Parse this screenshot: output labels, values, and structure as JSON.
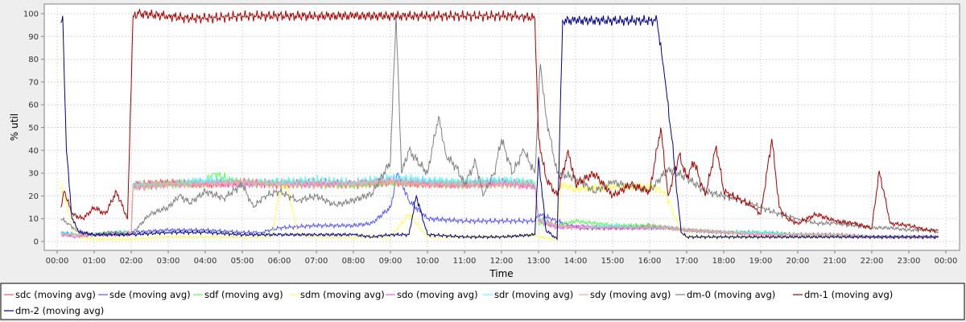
{
  "chart_data": {
    "type": "line",
    "title": "",
    "xlabel": "Time",
    "ylabel": "% util",
    "ylim": [
      0,
      100
    ],
    "yticks": [
      0,
      10,
      20,
      30,
      40,
      50,
      60,
      70,
      80,
      90,
      100
    ],
    "xlim": [
      "00:00",
      "24:00"
    ],
    "xtick_labels": [
      "00:00",
      "01:00",
      "02:00",
      "03:00",
      "04:00",
      "05:00",
      "06:00",
      "07:00",
      "08:00",
      "09:00",
      "10:00",
      "11:00",
      "12:00",
      "13:00",
      "14:00",
      "15:00",
      "16:00",
      "17:00",
      "18:00",
      "19:00",
      "20:00",
      "21:00",
      "22:00",
      "23:00",
      "00:00"
    ],
    "grid": true,
    "legend_position": "bottom",
    "series": [
      {
        "name": "sdc (moving avg)",
        "color": "#ff5555",
        "x": [
          0.1,
          0.5,
          1,
          1.5,
          2,
          2.05,
          3,
          4,
          5,
          6,
          7,
          8,
          9,
          10,
          11,
          12,
          12.9,
          13.0,
          13.5,
          14,
          15,
          16,
          16.5,
          17,
          18,
          19,
          20,
          21,
          22,
          23,
          23.8
        ],
        "y": [
          3,
          3,
          3,
          4,
          4,
          25,
          26,
          25,
          26,
          25,
          26,
          25,
          26,
          25,
          25,
          26,
          25,
          10,
          7,
          6,
          6,
          7,
          6,
          5,
          4,
          4,
          3,
          3,
          2,
          2,
          2
        ]
      },
      {
        "name": "sde (moving avg)",
        "color": "#5555ff",
        "x": [
          0.1,
          0.5,
          1,
          1.5,
          2,
          3,
          4,
          5,
          5.5,
          6,
          7,
          8,
          8.5,
          9,
          9.2,
          9.5,
          10,
          11,
          12,
          12.9,
          13.0,
          13.5,
          14,
          15,
          16,
          16.5,
          17,
          18,
          19,
          20,
          21,
          22,
          23,
          23.8
        ],
        "y": [
          4,
          3,
          3,
          4,
          4,
          5,
          5,
          4,
          4,
          6,
          7,
          7,
          8,
          15,
          30,
          18,
          10,
          9,
          9,
          9,
          12,
          9,
          6,
          6,
          6,
          6,
          5,
          4,
          4,
          3,
          3,
          2,
          2,
          2
        ]
      },
      {
        "name": "sdf (moving avg)",
        "color": "#55ff55",
        "x": [
          0.1,
          0.5,
          1,
          1.5,
          2,
          2.05,
          3,
          4,
          4.2,
          5,
          6,
          7,
          8,
          9,
          10,
          11,
          12,
          12.9,
          13.0,
          13.5,
          14,
          15,
          16,
          16.5,
          17,
          18,
          19,
          20,
          21,
          22,
          23,
          23.8
        ],
        "y": [
          3,
          3,
          3,
          4,
          4,
          24,
          25,
          26,
          30,
          25,
          26,
          25,
          25,
          26,
          26,
          25,
          26,
          25,
          8,
          7,
          9,
          7,
          7,
          6,
          5,
          4,
          4,
          3,
          3,
          2,
          2,
          2
        ]
      },
      {
        "name": "sdm (moving avg)",
        "color": "#ffff55",
        "x": [
          0.1,
          0.5,
          1,
          2,
          3,
          4,
          5,
          5.8,
          6.0,
          6.2,
          6.5,
          7,
          8,
          9,
          9.5,
          10,
          11,
          12,
          12.9,
          13.0,
          13.5,
          13.6,
          14,
          15,
          16,
          16.4,
          16.8,
          17,
          18,
          19,
          20,
          21,
          22,
          23,
          23.8
        ],
        "y": [
          25,
          2,
          1,
          1,
          2,
          2,
          2,
          2,
          22,
          25,
          3,
          2,
          2,
          2,
          12,
          2,
          2,
          2,
          3,
          2,
          1,
          25,
          23,
          24,
          24,
          22,
          6,
          2,
          2,
          2,
          2,
          2,
          2,
          2,
          2
        ]
      },
      {
        "name": "sdo (moving avg)",
        "color": "#ff55ff",
        "x": [
          0.1,
          0.5,
          1,
          1.5,
          2,
          2.05,
          3,
          4,
          5,
          6,
          7,
          8,
          9,
          10,
          11,
          12,
          12.9,
          13.0,
          13.5,
          14,
          15,
          16,
          16.5,
          17,
          18,
          19,
          20,
          21,
          22,
          23,
          23.8
        ],
        "y": [
          3,
          2,
          3,
          3,
          3,
          24,
          25,
          26,
          25,
          26,
          25,
          26,
          27,
          26,
          25,
          26,
          24,
          9,
          6,
          7,
          6,
          6,
          6,
          5,
          4,
          3,
          3,
          3,
          2,
          2,
          2
        ]
      },
      {
        "name": "sdr (moving avg)",
        "color": "#55ffff",
        "x": [
          0.1,
          0.5,
          1,
          1.5,
          2,
          2.05,
          3,
          4,
          5,
          6,
          7,
          8,
          9,
          10,
          11,
          12,
          12.9,
          13.0,
          13.5,
          14,
          15,
          16,
          16.5,
          17,
          18,
          19,
          20,
          21,
          22,
          23,
          23.8
        ],
        "y": [
          4,
          3,
          3,
          4,
          4,
          25,
          25,
          27,
          26,
          26,
          27,
          26,
          28,
          27,
          26,
          27,
          26,
          10,
          7,
          6,
          7,
          6,
          6,
          5,
          4,
          4,
          3,
          3,
          2,
          2,
          2
        ]
      },
      {
        "name": "sdy (moving avg)",
        "color": "#ff9f9f",
        "x": [
          0.1,
          0.5,
          1,
          1.5,
          2,
          2.05,
          3,
          4,
          5,
          6,
          7,
          8,
          9,
          10,
          11,
          12,
          12.9,
          13.0,
          13.5,
          14,
          15,
          16,
          16.5,
          17,
          18,
          19,
          20,
          21,
          22,
          23,
          23.8
        ],
        "y": [
          3,
          3,
          3,
          3,
          4,
          24,
          25,
          25,
          26,
          25,
          25,
          25,
          26,
          25,
          25,
          25,
          25,
          9,
          7,
          6,
          6,
          6,
          6,
          5,
          4,
          3,
          3,
          3,
          2,
          2,
          2
        ]
      },
      {
        "name": "dm-0 (moving avg)",
        "color": "#808080",
        "x": [
          0.1,
          0.3,
          0.5,
          1,
          1.5,
          2,
          2.5,
          3,
          3.3,
          3.6,
          4,
          4.5,
          5,
          5.3,
          5.6,
          6,
          6.5,
          7,
          7.5,
          8,
          8.5,
          9,
          9.15,
          9.3,
          9.5,
          9.8,
          10,
          10.3,
          10.5,
          10.8,
          11,
          11.3,
          11.5,
          11.8,
          12,
          12.3,
          12.6,
          12.9,
          13.05,
          13.2,
          13.5,
          14,
          14.5,
          15,
          15.5,
          16,
          16.5,
          17,
          17.5,
          18,
          18.5,
          19,
          19.5,
          20,
          20.5,
          21,
          21.5,
          22,
          22.5,
          23,
          23.5,
          23.8
        ],
        "y": [
          10,
          8,
          5,
          3,
          4,
          3,
          12,
          15,
          20,
          17,
          22,
          19,
          25,
          15,
          20,
          22,
          18,
          20,
          16,
          18,
          21,
          35,
          100,
          30,
          40,
          34,
          30,
          55,
          38,
          32,
          25,
          35,
          20,
          30,
          45,
          30,
          40,
          30,
          78,
          55,
          30,
          28,
          22,
          26,
          24,
          22,
          32,
          28,
          22,
          20,
          18,
          15,
          12,
          10,
          8,
          8,
          7,
          6,
          6,
          5,
          5,
          4
        ]
      },
      {
        "name": "dm-1 (moving avg)",
        "color": "#aa0000",
        "x": [
          0.1,
          0.2,
          0.4,
          0.7,
          1,
          1.3,
          1.6,
          1.9,
          2.05,
          2.2,
          3,
          3.5,
          4,
          5,
          6,
          7,
          8,
          9,
          10,
          11,
          12,
          12.5,
          12.9,
          13.0,
          13.2,
          13.5,
          13.8,
          14,
          14.5,
          15,
          15.5,
          16,
          16.3,
          16.5,
          16.8,
          17,
          17.2,
          17.5,
          17.8,
          18,
          18.5,
          18.8,
          19,
          19.3,
          19.5,
          19.7,
          20,
          20.5,
          21,
          21.5,
          22,
          22.2,
          22.5,
          23,
          23.5,
          23.8
        ],
        "y": [
          15,
          22,
          12,
          10,
          15,
          12,
          22,
          10,
          99,
          100,
          99,
          98,
          98,
          99,
          99,
          99,
          99,
          99,
          99,
          99,
          99,
          99,
          98,
          45,
          28,
          20,
          40,
          25,
          30,
          20,
          25,
          22,
          50,
          20,
          38,
          28,
          35,
          20,
          42,
          22,
          18,
          15,
          12,
          45,
          15,
          10,
          8,
          12,
          9,
          8,
          6,
          31,
          8,
          7,
          5,
          5
        ]
      },
      {
        "name": "dm-2 (moving avg)",
        "color": "#000088",
        "x": [
          0.1,
          0.15,
          0.25,
          0.4,
          0.6,
          1,
          1.5,
          2,
          3,
          4,
          5,
          6,
          7,
          8,
          8.5,
          9,
          9.5,
          9.7,
          10,
          11,
          12,
          12.9,
          13.0,
          13.2,
          13.5,
          13.65,
          14,
          15,
          16,
          16.2,
          16.4,
          16.6,
          16.75,
          16.85,
          17,
          18,
          19,
          20,
          21,
          22,
          23,
          23.8
        ],
        "y": [
          96,
          99,
          40,
          10,
          4,
          3,
          3,
          3,
          4,
          4,
          3,
          3,
          3,
          3,
          2,
          3,
          3,
          20,
          3,
          2,
          2,
          3,
          37,
          5,
          1,
          97,
          97,
          97,
          97,
          97,
          73,
          45,
          20,
          4,
          2,
          2,
          2,
          2,
          2,
          2,
          2,
          2
        ]
      }
    ]
  }
}
